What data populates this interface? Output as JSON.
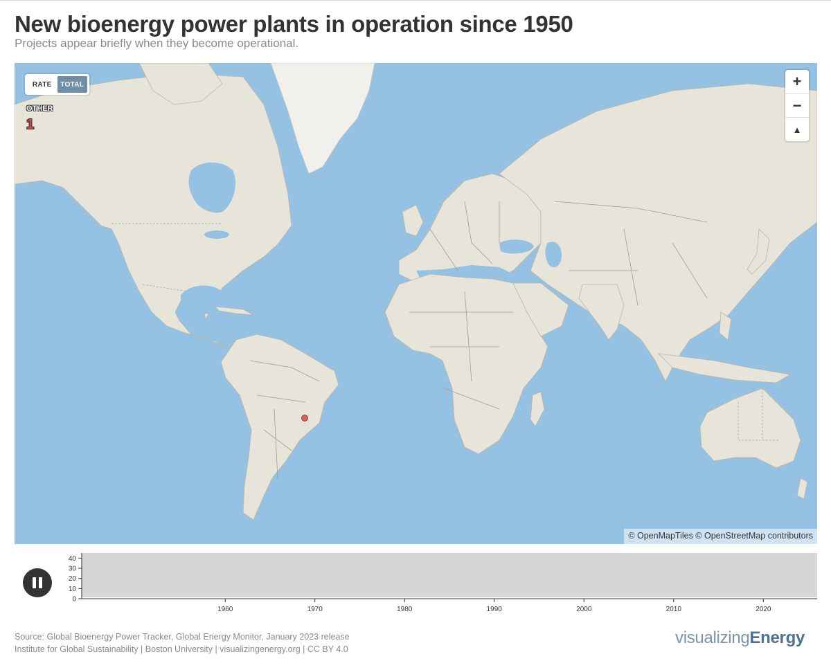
{
  "header": {
    "title": "New bioenergy power plants in operation since 1950",
    "subtitle": "Projects appear briefly when they become operational."
  },
  "map": {
    "toggle": {
      "options": [
        "RATE",
        "TOTAL"
      ],
      "selected": "TOTAL"
    },
    "legend": {
      "category": "OTHER",
      "count": "1",
      "marker_color": "#cc4a4a"
    },
    "controls": {
      "zoom_in": "+",
      "zoom_out": "−",
      "compass": "▲"
    },
    "attribution": "© OpenMapTiles © OpenStreetMap contributors",
    "colors": {
      "water": "#95c1e3",
      "land": "#e7e5da",
      "ice": "#f1f0ec"
    },
    "plants": [
      {
        "category": "OTHER",
        "location": "Southeastern Brazil"
      }
    ]
  },
  "timeline": {
    "y_ticks": [
      "0",
      "10",
      "20",
      "30",
      "40"
    ],
    "x_ticks": [
      "1960",
      "1970",
      "1980",
      "1990",
      "2000",
      "2010",
      "2020"
    ],
    "x_range": [
      1944,
      2026
    ],
    "y_range": [
      0,
      45
    ],
    "state": "playing",
    "colors": {
      "plot_bg": "#d6d6d6",
      "button": "#333333"
    }
  },
  "footer": {
    "source_line1": "Source: Global Bioenergy Power Tracker, Global Energy Monitor, January 2023 release",
    "source_line2": "Institute for Global Sustainability | Boston University | visualizingenergy.org | CC BY 4.0",
    "brand_light": "visualizing",
    "brand_bold": "Energy"
  }
}
